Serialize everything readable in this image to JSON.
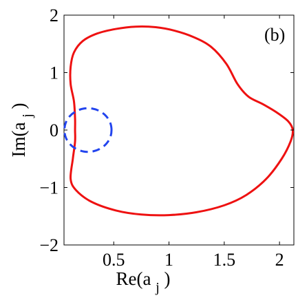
{
  "chart_data": {
    "type": "line",
    "panel_label": "(b)",
    "xlabel": {
      "main": "Re(a",
      "sub": "j",
      "close": ")"
    },
    "ylabel": {
      "main": "Im(a",
      "sub": "j",
      "close": ")"
    },
    "xlim": [
      0.05,
      2.13
    ],
    "ylim": [
      -2,
      2
    ],
    "xticks": [
      {
        "value": 0.5,
        "label": "0.5"
      },
      {
        "value": 1,
        "label": "1"
      },
      {
        "value": 1.5,
        "label": "1.5"
      },
      {
        "value": 2,
        "label": "2"
      }
    ],
    "yticks": [
      {
        "value": 2,
        "label": "2"
      },
      {
        "value": 1,
        "label": "1"
      },
      {
        "value": 0,
        "label": "0"
      },
      {
        "value": -1,
        "label": "−1"
      },
      {
        "value": -2,
        "label": "−2"
      }
    ],
    "grid": false,
    "series": [
      {
        "style": "solid",
        "color": "#ee1111",
        "points": [
          [
            0.15,
            0.0
          ],
          [
            0.15,
            0.2
          ],
          [
            0.14,
            0.5
          ],
          [
            0.11,
            0.8
          ],
          [
            0.11,
            1.1
          ],
          [
            0.14,
            1.35
          ],
          [
            0.22,
            1.55
          ],
          [
            0.35,
            1.68
          ],
          [
            0.52,
            1.76
          ],
          [
            0.7,
            1.8
          ],
          [
            0.88,
            1.79
          ],
          [
            1.05,
            1.73
          ],
          [
            1.22,
            1.62
          ],
          [
            1.38,
            1.45
          ],
          [
            1.52,
            1.15
          ],
          [
            1.62,
            0.8
          ],
          [
            1.72,
            0.58
          ],
          [
            1.85,
            0.45
          ],
          [
            1.98,
            0.3
          ],
          [
            2.08,
            0.15
          ],
          [
            2.12,
            0.0
          ],
          [
            2.1,
            -0.2
          ],
          [
            2.02,
            -0.5
          ],
          [
            1.88,
            -0.85
          ],
          [
            1.7,
            -1.13
          ],
          [
            1.5,
            -1.31
          ],
          [
            1.25,
            -1.43
          ],
          [
            1.0,
            -1.48
          ],
          [
            0.75,
            -1.47
          ],
          [
            0.52,
            -1.4
          ],
          [
            0.3,
            -1.25
          ],
          [
            0.16,
            -1.05
          ],
          [
            0.11,
            -0.85
          ],
          [
            0.13,
            -0.5
          ],
          [
            0.15,
            -0.2
          ],
          [
            0.15,
            0.0
          ]
        ]
      },
      {
        "style": "dashed",
        "color": "#2244ee",
        "points": [
          [
            0.48,
            0.0
          ],
          [
            0.468,
            0.129
          ],
          [
            0.431,
            0.243
          ],
          [
            0.374,
            0.328
          ],
          [
            0.304,
            0.374
          ],
          [
            0.23,
            0.374
          ],
          [
            0.16,
            0.328
          ],
          [
            0.103,
            0.243
          ],
          [
            0.066,
            0.129
          ],
          [
            0.054,
            0.0
          ],
          [
            0.066,
            -0.129
          ],
          [
            0.103,
            -0.243
          ],
          [
            0.16,
            -0.328
          ],
          [
            0.23,
            -0.374
          ],
          [
            0.304,
            -0.374
          ],
          [
            0.374,
            -0.328
          ],
          [
            0.431,
            -0.243
          ],
          [
            0.468,
            -0.129
          ],
          [
            0.48,
            0.0
          ]
        ]
      }
    ]
  }
}
